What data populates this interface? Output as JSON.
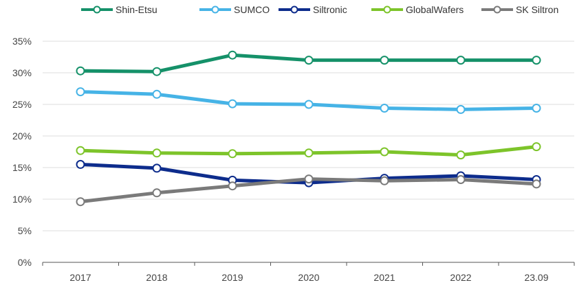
{
  "chart_data": {
    "type": "line",
    "title": "",
    "xlabel": "",
    "ylabel": "",
    "categories": [
      "2017",
      "2018",
      "2019",
      "2020",
      "2021",
      "2022",
      "23.09"
    ],
    "y_ticks": [
      "0%",
      "5%",
      "10%",
      "15%",
      "20%",
      "25%",
      "30%",
      "35%"
    ],
    "ylim": [
      0,
      35
    ],
    "grid": true,
    "legend_position": "top",
    "series": [
      {
        "name": "Shin-Etsu",
        "color": "#159169",
        "values": [
          30.3,
          30.2,
          32.8,
          32.0,
          32.0,
          32.0,
          32.0
        ]
      },
      {
        "name": "SUMCO",
        "color": "#46b3e6",
        "values": [
          27.0,
          26.6,
          25.1,
          25.0,
          24.4,
          24.2,
          24.4
        ]
      },
      {
        "name": "Siltronic",
        "color": "#0d2c8c",
        "values": [
          15.5,
          14.9,
          13.0,
          12.6,
          13.3,
          13.7,
          13.1
        ]
      },
      {
        "name": "GlobalWafers",
        "color": "#7dc42a",
        "values": [
          17.7,
          17.3,
          17.2,
          17.3,
          17.5,
          17.0,
          18.3
        ]
      },
      {
        "name": "SK Siltron",
        "color": "#7a7a7a",
        "values": [
          9.6,
          11.0,
          12.1,
          13.2,
          12.9,
          13.1,
          12.4
        ]
      }
    ]
  }
}
